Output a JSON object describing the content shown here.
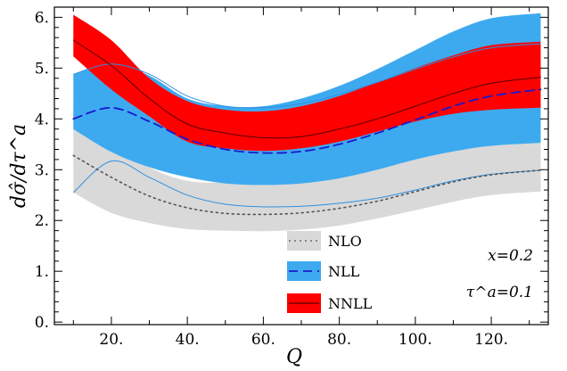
{
  "chart_data": {
    "type": "line",
    "xlabel": "Q",
    "ylabel": "dσ̂/dτ^a",
    "xlim": [
      5,
      135
    ],
    "ylim": [
      -0.05,
      6.2
    ],
    "x_ticks": [
      20,
      40,
      60,
      80,
      100,
      120
    ],
    "x_tick_labels": [
      "20.",
      "40.",
      "60.",
      "80.",
      "100.",
      "120."
    ],
    "y_ticks": [
      0,
      1,
      2,
      3,
      4,
      5,
      6
    ],
    "y_tick_labels": [
      "0.",
      "1.",
      "2.",
      "3.",
      "4.",
      "5.",
      "6."
    ],
    "grid": false,
    "legend_position": "bottom-center",
    "annotations": [
      "x=0.2",
      "τ^a=0.1"
    ],
    "series": [
      {
        "name": "NLO",
        "color_band": "#d9d9d9",
        "color_line": "#555555",
        "line_style": "dotted",
        "x": [
          10,
          20,
          30,
          40,
          50,
          60,
          70,
          80,
          90,
          100,
          110,
          120,
          133
        ],
        "central": [
          3.28,
          2.85,
          2.48,
          2.25,
          2.14,
          2.12,
          2.15,
          2.24,
          2.38,
          2.57,
          2.76,
          2.9,
          2.99
        ],
        "lower": [
          2.55,
          2.15,
          1.95,
          1.83,
          1.8,
          1.79,
          1.82,
          1.9,
          2.04,
          2.2,
          2.37,
          2.5,
          2.57
        ],
        "upper": [
          4.38,
          3.6,
          3.05,
          2.78,
          2.75,
          2.8,
          2.9,
          3.02,
          3.16,
          3.3,
          3.42,
          3.5,
          3.55
        ],
        "scale_line": [
          2.55,
          3.17,
          2.85,
          2.5,
          2.32,
          2.27,
          2.28,
          2.34,
          2.44,
          2.6,
          2.78,
          2.91,
          2.99
        ]
      },
      {
        "name": "NLL",
        "color_band": "#3daaf0",
        "color_line": "#1a1acc",
        "line_style": "dashed",
        "x": [
          10,
          20,
          30,
          40,
          50,
          60,
          70,
          80,
          90,
          100,
          110,
          120,
          133
        ],
        "central": [
          4.0,
          4.22,
          3.95,
          3.6,
          3.4,
          3.33,
          3.36,
          3.5,
          3.72,
          3.98,
          4.25,
          4.45,
          4.58
        ],
        "lower": [
          3.8,
          3.35,
          3.05,
          2.85,
          2.73,
          2.7,
          2.73,
          2.83,
          3.0,
          3.2,
          3.36,
          3.47,
          3.53
        ],
        "upper": [
          4.88,
          5.1,
          4.85,
          4.4,
          4.25,
          4.25,
          4.4,
          4.65,
          4.98,
          5.35,
          5.72,
          5.98,
          6.08
        ],
        "scale_line": [
          4.88,
          5.08,
          4.88,
          4.45,
          4.25,
          4.22,
          4.3,
          4.48,
          4.72,
          4.98,
          5.22,
          5.4,
          5.48
        ]
      },
      {
        "name": "NNLL",
        "color_band": "#ff0000",
        "color_line": "#550000",
        "line_style": "solid",
        "x": [
          10,
          20,
          30,
          40,
          50,
          60,
          70,
          80,
          90,
          100,
          110,
          120,
          133
        ],
        "central": [
          5.55,
          5.05,
          4.4,
          3.9,
          3.72,
          3.63,
          3.65,
          3.8,
          4.0,
          4.25,
          4.5,
          4.7,
          4.82
        ],
        "lower": [
          5.23,
          4.58,
          4.05,
          3.55,
          3.42,
          3.37,
          3.42,
          3.55,
          3.75,
          3.95,
          4.1,
          4.18,
          4.22
        ],
        "upper": [
          6.05,
          5.55,
          4.8,
          4.35,
          4.18,
          4.15,
          4.25,
          4.45,
          4.72,
          5.0,
          5.25,
          5.45,
          5.52
        ]
      }
    ]
  }
}
